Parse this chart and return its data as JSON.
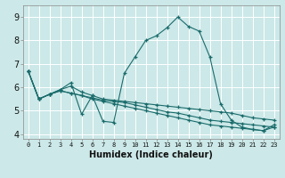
{
  "xlabel": "Humidex (Indice chaleur)",
  "background_color": "#cce8e8",
  "grid_color": "#ffffff",
  "line_color": "#1a6b6b",
  "xlim": [
    -0.5,
    23.5
  ],
  "ylim": [
    3.8,
    9.5
  ],
  "xtick_labels": [
    "0",
    "1",
    "2",
    "3",
    "4",
    "5",
    "6",
    "7",
    "8",
    "9",
    "10",
    "11",
    "12",
    "13",
    "14",
    "15",
    "16",
    "17",
    "18",
    "19",
    "20",
    "21",
    "22",
    "23"
  ],
  "ytick_vals": [
    4,
    5,
    6,
    7,
    8,
    9
  ],
  "series": [
    {
      "x": [
        0,
        1,
        2,
        3,
        4,
        5,
        6,
        7,
        8,
        9,
        10,
        11,
        12,
        13,
        14,
        15,
        16,
        17,
        18,
        19,
        20,
        21,
        22,
        23
      ],
      "y": [
        6.7,
        5.5,
        5.7,
        5.9,
        6.2,
        4.85,
        5.65,
        4.55,
        4.5,
        6.6,
        7.3,
        8.0,
        8.2,
        8.55,
        9.0,
        8.6,
        8.4,
        7.3,
        5.3,
        4.6,
        4.3,
        4.2,
        4.15,
        4.4
      ]
    },
    {
      "x": [
        0,
        1,
        2,
        3,
        4,
        5,
        6,
        7,
        8,
        9,
        10,
        11,
        12,
        13,
        14,
        15,
        16,
        17,
        18,
        19,
        20,
        21,
        22,
        23
      ],
      "y": [
        6.7,
        5.5,
        5.7,
        5.9,
        6.05,
        5.8,
        5.65,
        5.5,
        5.45,
        5.4,
        5.35,
        5.3,
        5.25,
        5.2,
        5.15,
        5.1,
        5.05,
        5.0,
        4.95,
        4.9,
        4.8,
        4.7,
        4.65,
        4.6
      ]
    },
    {
      "x": [
        0,
        1,
        2,
        3,
        4,
        5,
        6,
        7,
        8,
        9,
        10,
        11,
        12,
        13,
        14,
        15,
        16,
        17,
        18,
        19,
        20,
        21,
        22,
        23
      ],
      "y": [
        6.7,
        5.5,
        5.7,
        5.85,
        5.75,
        5.65,
        5.55,
        5.45,
        5.4,
        5.35,
        5.25,
        5.15,
        5.05,
        4.95,
        4.9,
        4.8,
        4.7,
        4.6,
        4.55,
        4.5,
        4.45,
        4.4,
        4.35,
        4.3
      ]
    },
    {
      "x": [
        0,
        1,
        2,
        3,
        4,
        5,
        6,
        7,
        8,
        9,
        10,
        11,
        12,
        13,
        14,
        15,
        16,
        17,
        18,
        19,
        20,
        21,
        22,
        23
      ],
      "y": [
        6.7,
        5.5,
        5.7,
        5.85,
        5.75,
        5.65,
        5.5,
        5.4,
        5.3,
        5.2,
        5.1,
        5.0,
        4.9,
        4.8,
        4.7,
        4.6,
        4.5,
        4.4,
        4.35,
        4.3,
        4.25,
        4.2,
        4.15,
        4.3
      ]
    }
  ]
}
